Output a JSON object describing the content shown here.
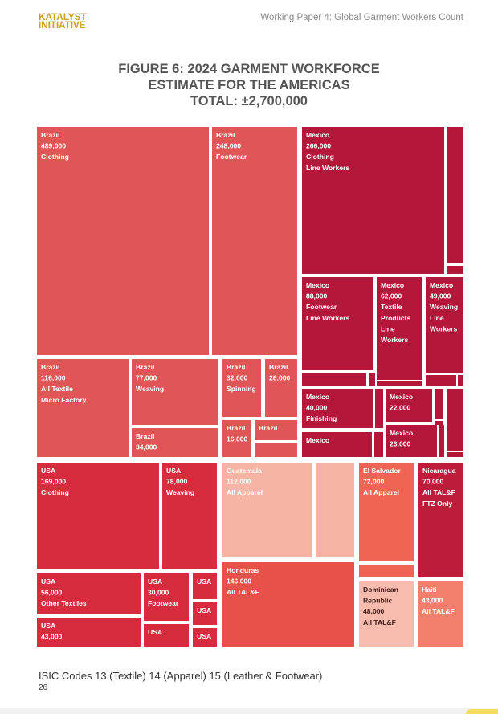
{
  "header": {
    "logo_line1": "KATALYST",
    "logo_line2": "INITIATIVE",
    "paper_title": "Working Paper 4: Global Garment Workers Count"
  },
  "figure": {
    "title_line1": "FIGURE 6: 2024 GARMENT WORKFORCE",
    "title_line2": "ESTIMATE FOR THE AMERICAS",
    "title_line3": "TOTAL: ±2,700,000"
  },
  "footer": {
    "note": "ISIC Codes 13 (Textile) 14 (Apparel) 15 (Leather & Footwear)",
    "page_number": "26"
  },
  "colors": {
    "brazil": "#e05656",
    "mexico": "#b5173a",
    "usa": "#d72b3e",
    "guatemala": "#f6b4a5",
    "honduras": "#e8504a",
    "el_salvador": "#f06454",
    "dominican_republic": "#f7bcad",
    "nicaragua": "#bd1d3b",
    "haiti": "#f27f6c",
    "label": "#ffffff",
    "label_dark": "#3a1a1a"
  },
  "chart_data": {
    "type": "treemap",
    "title": "FIGURE 6: 2024 GARMENT WORKFORCE ESTIMATE FOR THE AMERICAS",
    "total": "±2,700,000",
    "cells": [
      {
        "id": "brazil-clothing",
        "country": "Brazil",
        "value": 489000,
        "lines": [
          "Brazil",
          "489,000",
          "Clothing"
        ]
      },
      {
        "id": "brazil-footwear",
        "country": "Brazil",
        "value": 248000,
        "lines": [
          "Brazil",
          "248,000",
          "Footwear"
        ]
      },
      {
        "id": "brazil-all-textile",
        "country": "Brazil",
        "value": 116000,
        "lines": [
          "Brazil",
          "116,000",
          "All Textile",
          "Micro Factory"
        ]
      },
      {
        "id": "brazil-weaving",
        "country": "Brazil",
        "value": 77000,
        "lines": [
          "Brazil",
          "77,000",
          "Weaving"
        ]
      },
      {
        "id": "brazil-34k",
        "country": "Brazil",
        "value": 34000,
        "lines": [
          "Brazil",
          "34,000"
        ]
      },
      {
        "id": "brazil-spinning",
        "country": "Brazil",
        "value": 32000,
        "lines": [
          "Brazil",
          "32,000",
          "Spinning"
        ]
      },
      {
        "id": "brazil-26k",
        "country": "Brazil",
        "value": 26000,
        "lines": [
          "Brazil",
          "26,000"
        ]
      },
      {
        "id": "brazil-16k",
        "country": "Brazil",
        "value": 16000,
        "lines": [
          "Brazil",
          "16,000"
        ]
      },
      {
        "id": "brazil-small",
        "country": "Brazil",
        "lines": [
          "Brazil"
        ]
      },
      {
        "id": "brazil-tiny",
        "country": "Brazil",
        "lines": []
      },
      {
        "id": "mexico-clothing",
        "country": "Mexico",
        "value": 266000,
        "lines": [
          "Mexico",
          "266,000",
          "Clothing",
          " Line Workers"
        ]
      },
      {
        "id": "mexico-footwear",
        "country": "Mexico",
        "value": 88000,
        "lines": [
          "Mexico",
          "88,000",
          "Footwear",
          " Line Workers"
        ]
      },
      {
        "id": "mexico-textile-products",
        "country": "Mexico",
        "value": 62000,
        "lines": [
          "Mexico",
          "62,000",
          "Textile",
          "Products",
          " Line",
          "Workers"
        ]
      },
      {
        "id": "mexico-weaving",
        "country": "Mexico",
        "value": 49000,
        "lines": [
          "Mexico",
          "49,000",
          "Weaving",
          " Line",
          "Workers"
        ]
      },
      {
        "id": "mexico-finishing",
        "country": "Mexico",
        "value": 40000,
        "lines": [
          "Mexico",
          "40,000",
          "Finishing"
        ]
      },
      {
        "id": "mexico-22k",
        "country": "Mexico",
        "value": 22000,
        "lines": [
          "Mexico",
          "22,000"
        ]
      },
      {
        "id": "mexico-23k",
        "country": "Mexico",
        "value": 23000,
        "lines": [
          "Mexico",
          "23,000"
        ]
      },
      {
        "id": "mexico-small",
        "country": "Mexico",
        "lines": [
          "Mexico"
        ]
      },
      {
        "id": "usa-clothing",
        "country": "USA",
        "value": 169000,
        "lines": [
          "USA",
          "169,000",
          "Clothing"
        ]
      },
      {
        "id": "usa-weaving",
        "country": "USA",
        "value": 78000,
        "lines": [
          "USA",
          "78,000",
          "Weaving"
        ]
      },
      {
        "id": "usa-other-textiles",
        "country": "USA",
        "value": 56000,
        "lines": [
          "USA",
          "56,000",
          "Other Textiles"
        ]
      },
      {
        "id": "usa-footwear",
        "country": "USA",
        "value": 30000,
        "lines": [
          "USA",
          "30,000",
          "Footwear"
        ]
      },
      {
        "id": "usa-43k",
        "country": "USA",
        "value": 43000,
        "lines": [
          "USA",
          "43,000"
        ]
      },
      {
        "id": "usa-small-1",
        "country": "USA",
        "lines": [
          "USA"
        ]
      },
      {
        "id": "usa-small-2",
        "country": "USA",
        "lines": [
          "USA"
        ]
      },
      {
        "id": "usa-small-3",
        "country": "USA",
        "lines": [
          "USA"
        ]
      },
      {
        "id": "usa-small-4",
        "country": "USA",
        "lines": [
          "USA"
        ]
      },
      {
        "id": "guatemala-all-apparel",
        "country": "Guatemala",
        "value": 112000,
        "lines": [
          "Guatemala",
          "112,000",
          "All Apparel"
        ]
      },
      {
        "id": "guatemala-other",
        "country": "Guatemala",
        "lines": []
      },
      {
        "id": "honduras-tal",
        "country": "Honduras",
        "value": 146000,
        "lines": [
          "Honduras",
          "146,000",
          "All TAL&F"
        ]
      },
      {
        "id": "el-salvador-all-apparel",
        "country": "El Salvador",
        "value": 72000,
        "lines": [
          "El Salvador",
          "72,000",
          "All Apparel"
        ]
      },
      {
        "id": "el-salvador-other",
        "country": "El Salvador",
        "lines": []
      },
      {
        "id": "nicaragua-tal",
        "country": "Nicaragua",
        "value": 70000,
        "lines": [
          "Nicaragua",
          "70,000",
          "All TAL&F",
          " FTZ Only"
        ]
      },
      {
        "id": "dominican-republic-tal",
        "country": "Dominican Republic",
        "value": 48000,
        "lines": [
          "Dominican",
          "Republic",
          "48,000",
          "All TAL&F"
        ]
      },
      {
        "id": "haiti-tal",
        "country": "Haiti",
        "value": 43000,
        "lines": [
          "Haiti",
          "43,000",
          "All TAL&F"
        ]
      }
    ]
  }
}
